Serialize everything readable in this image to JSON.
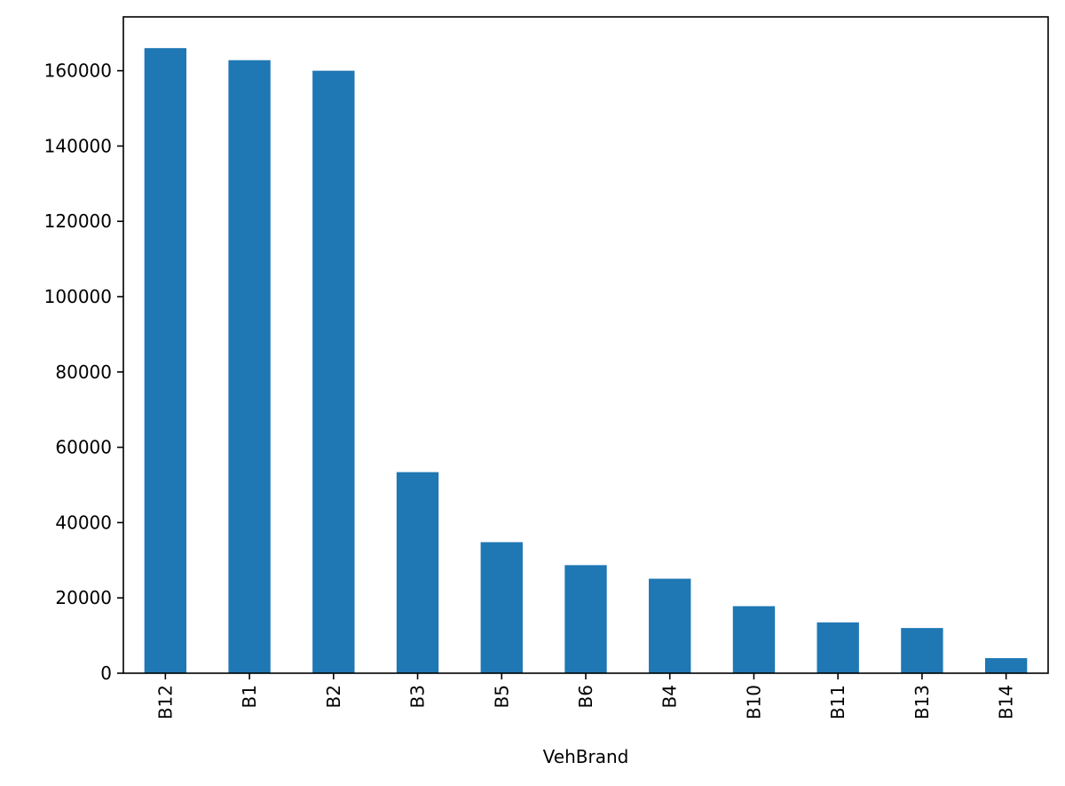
{
  "chart_data": {
    "type": "bar",
    "title": "",
    "xlabel": "VehBrand",
    "ylabel": "",
    "categories": [
      "B12",
      "B1",
      "B2",
      "B3",
      "B5",
      "B6",
      "B4",
      "B10",
      "B11",
      "B13",
      "B14"
    ],
    "values": [
      166000,
      162800,
      160000,
      53400,
      34800,
      28700,
      25100,
      17800,
      13500,
      12000,
      4000
    ],
    "ylim": [
      0,
      174300
    ],
    "yticks": [
      0,
      20000,
      40000,
      60000,
      80000,
      100000,
      120000,
      140000,
      160000
    ],
    "ytick_labels": [
      "0",
      "20000",
      "40000",
      "60000",
      "80000",
      "100000",
      "120000",
      "140000",
      "160000"
    ],
    "bar_color": "#1f77b4",
    "grid": false,
    "legend": "none"
  }
}
